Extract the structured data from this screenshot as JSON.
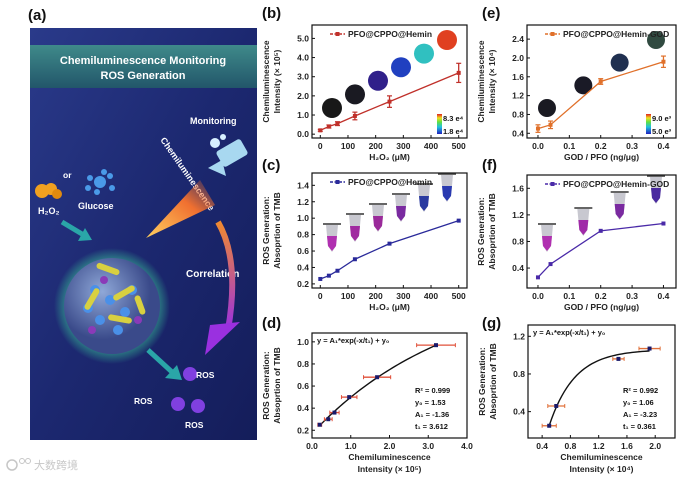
{
  "panel_a": {
    "label": "(a)",
    "title_line1": "Chemiluminescence Monitoring",
    "title_line2": "ROS Generation",
    "monitoring": "Monitoring",
    "chemiluminescence": "Chemiluminescence",
    "or": "or",
    "glucose": "Glucose",
    "h2o2": "H₂O₂",
    "correlation": "Correlation",
    "ros": [
      "ROS",
      "ROS",
      "ROS"
    ],
    "colors": {
      "bg": "#1f2a78",
      "banner": "#2f6f78",
      "arrow": "#2aa6a8"
    }
  },
  "watermark": "大数跨境",
  "chart_data": [
    {
      "id": "b",
      "label": "(b)",
      "type": "line",
      "legend": "PFO@CPPO@Hemin",
      "color": "#c0302a",
      "x": [
        0,
        31,
        62,
        125,
        250,
        500
      ],
      "y": [
        0.2,
        0.4,
        0.55,
        0.95,
        1.7,
        3.2
      ],
      "yerr": [
        0.05,
        0.08,
        0.1,
        0.2,
        0.3,
        0.5
      ],
      "xlim": [
        -30,
        530
      ],
      "ylim": [
        -0.2,
        5.7
      ],
      "xticks": [
        0,
        100,
        200,
        300,
        400,
        500
      ],
      "xticklabels": [
        "0",
        "100",
        "200",
        "300",
        "400",
        "500"
      ],
      "yticks": [
        0,
        1,
        2,
        3,
        4,
        5
      ],
      "yticklabels": [
        "0.0",
        "1.0",
        "2.0",
        "3.0",
        "4.0",
        "5.0"
      ],
      "ylabel": [
        "Chemiluminescence",
        "Intensity (× 10⁵)"
      ],
      "xlabel": [
        "H₂O₂ (μM)"
      ],
      "colorbar": [
        "8.3 e⁴",
        "1.8 e⁴"
      ]
    },
    {
      "id": "e",
      "label": "(e)",
      "type": "line",
      "legend": "PFO@CPPO@Hemin-GOD",
      "color": "#e0702a",
      "x": [
        0,
        0.04,
        0.2,
        0.4
      ],
      "y": [
        0.5,
        0.58,
        1.5,
        1.92
      ],
      "yerr": [
        0.08,
        0.08,
        0.06,
        0.12
      ],
      "xlim": [
        -0.035,
        0.44
      ],
      "ylim": [
        0.3,
        2.7
      ],
      "xticks": [
        0,
        0.1,
        0.2,
        0.3,
        0.4
      ],
      "xticklabels": [
        "0.0",
        "0.1",
        "0.2",
        "0.3",
        "0.4"
      ],
      "yticks": [
        0.4,
        0.8,
        1.2,
        1.6,
        2.0,
        2.4
      ],
      "yticklabels": [
        "0.4",
        "0.8",
        "1.2",
        "1.6",
        "2.0",
        "2.4"
      ],
      "ylabel": [
        "Chemiluminescence",
        "Intensity (× 10⁴)"
      ],
      "xlabel": [
        "GOD / PFO (ng/μg)"
      ],
      "colorbar": [
        "9.0 e³",
        "5.0 e³"
      ]
    },
    {
      "id": "c",
      "label": "(c)",
      "type": "line",
      "legend": "PFO@CPPO@Hemin",
      "color": "#2a2a9a",
      "x": [
        0,
        31,
        62,
        125,
        250,
        500
      ],
      "y": [
        0.26,
        0.3,
        0.36,
        0.5,
        0.69,
        0.97
      ],
      "xlim": [
        -30,
        530
      ],
      "ylim": [
        0.15,
        1.55
      ],
      "xticks": [
        0,
        100,
        200,
        300,
        400,
        500
      ],
      "xticklabels": [
        "0",
        "100",
        "200",
        "300",
        "400",
        "500"
      ],
      "yticks": [
        0.2,
        0.4,
        0.6,
        0.8,
        1.0,
        1.2,
        1.4
      ],
      "yticklabels": [
        "0.2",
        "0.4",
        "0.6",
        "0.8",
        "1.0",
        "1.2",
        "1.4"
      ],
      "ylabel": [
        "ROS Generation:",
        "Absoprtion of TMB"
      ],
      "xlabel": [
        "H₂O₂ (μM)"
      ]
    },
    {
      "id": "f",
      "label": "(f)",
      "type": "line",
      "legend": "PFO@CPPO@Hemin-GOD",
      "color": "#4a2aa8",
      "x": [
        0,
        0.04,
        0.2,
        0.4
      ],
      "y": [
        0.26,
        0.46,
        0.96,
        1.07
      ],
      "xlim": [
        -0.035,
        0.44
      ],
      "ylim": [
        0.1,
        1.8
      ],
      "xticks": [
        0,
        0.1,
        0.2,
        0.3,
        0.4
      ],
      "xticklabels": [
        "0.0",
        "0.1",
        "0.2",
        "0.3",
        "0.4"
      ],
      "yticks": [
        0.4,
        0.8,
        1.2,
        1.6
      ],
      "yticklabels": [
        "0.4",
        "0.8",
        "1.2",
        "1.6"
      ],
      "ylabel": [
        "ROS Generation:",
        "Absoprtion of TMB"
      ],
      "xlabel": [
        "GOD / PFO (ng/μg)"
      ]
    },
    {
      "id": "d",
      "label": "(d)",
      "type": "scatter",
      "color": "#1a1a6a",
      "errcolor": "#e0503a",
      "x": [
        0.2,
        0.42,
        0.58,
        0.96,
        1.68,
        3.2
      ],
      "y": [
        0.25,
        0.3,
        0.36,
        0.5,
        0.68,
        0.97
      ],
      "xerr": [
        0.05,
        0.1,
        0.12,
        0.2,
        0.35,
        0.5
      ],
      "fit": {
        "equation": "y = A₁*exp(-x/t₁) + y₀",
        "y0": 1.53,
        "A1": -1.36,
        "t1": 3.612,
        "R2": 0.999,
        "labels": [
          "R² = 0.999",
          "y₀ = 1.53",
          "A₁ = -1.36",
          "t₁ = 3.612"
        ]
      },
      "xlim": [
        0,
        4
      ],
      "ylim": [
        0.13,
        1.08
      ],
      "xticks": [
        0,
        1,
        2,
        3,
        4
      ],
      "xticklabels": [
        "0.0",
        "1.0",
        "2.0",
        "3.0",
        "4.0"
      ],
      "yticks": [
        0.2,
        0.4,
        0.6,
        0.8,
        1.0
      ],
      "yticklabels": [
        "0.2",
        "0.4",
        "0.6",
        "0.8",
        "1.0"
      ],
      "ylabel": [
        "ROS Generation:",
        "Absoprtion of TMB"
      ],
      "xlabel": [
        "Chemiluminescence",
        "Intensity (× 10⁵)"
      ]
    },
    {
      "id": "g",
      "label": "(g)",
      "type": "scatter",
      "color": "#1a1a6a",
      "errcolor": "#e0703a",
      "x": [
        0.5,
        0.6,
        1.48,
        1.92
      ],
      "y": [
        0.25,
        0.46,
        0.96,
        1.07
      ],
      "xerr": [
        0.1,
        0.12,
        0.08,
        0.15
      ],
      "fit": {
        "equation": "y = A₁*exp(-x/t₁) + y₀",
        "y0": 1.06,
        "A1": -3.23,
        "t1": 0.361,
        "R2": 0.992,
        "labels": [
          "R² = 0.992",
          "y₀ = 1.06",
          "A₁ = -3.23",
          "t₁ = 0.361"
        ]
      },
      "xlim": [
        0.2,
        2.28
      ],
      "ylim": [
        0.12,
        1.32
      ],
      "xticks": [
        0.4,
        0.8,
        1.2,
        1.6,
        2.0
      ],
      "xticklabels": [
        "0.4",
        "0.8",
        "1.2",
        "1.6",
        "2.0"
      ],
      "yticks": [
        0.4,
        0.8,
        1.2
      ],
      "yticklabels": [
        "0.4",
        "0.8",
        "1.2"
      ],
      "ylabel": [
        "ROS Generation:",
        "Absoprtion of TMB"
      ],
      "xlabel": [
        "Chemiluminescence",
        "Intensity (× 10⁴)"
      ]
    }
  ]
}
